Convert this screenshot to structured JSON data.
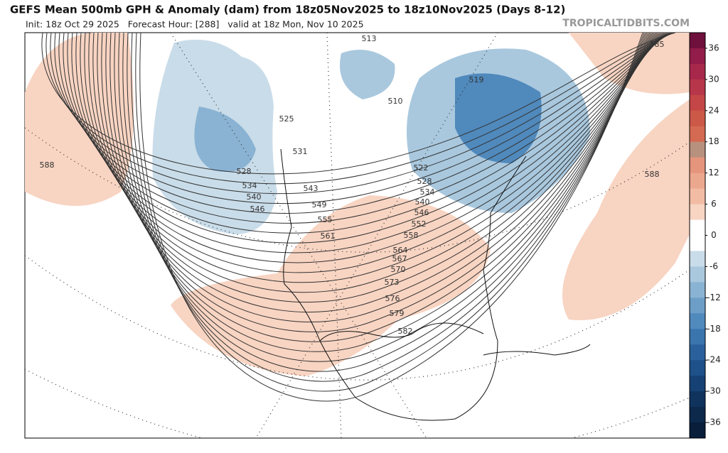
{
  "header": {
    "title": "GEFS Mean 500mb GPH & Anomaly (dam) from 18z05Nov2025 to 18z10Nov2025 (Days 8-12)",
    "info": "Init: 18z Oct 29 2025   Forecast Hour: [288]   valid at 18z Mon, Nov 10 2025",
    "watermark": "TROPICALTIDBITS.COM"
  },
  "contour_labels": [
    513,
    510,
    519,
    525,
    531,
    528,
    534,
    540,
    546,
    543,
    549,
    555,
    561,
    522,
    528,
    534,
    540,
    546,
    552,
    558,
    564,
    567,
    570,
    573,
    576,
    579,
    582,
    588,
    588,
    585
  ],
  "colorbar": {
    "lim": [
      -39,
      39
    ],
    "ticks": [
      36,
      30,
      24,
      18,
      12,
      6,
      0,
      -6,
      -12,
      -18,
      -24,
      -30,
      -36
    ],
    "colors": [
      "#6e0f3c",
      "#921c4a",
      "#a8284c",
      "#b8364a",
      "#c44646",
      "#cc5848",
      "#d46a52",
      "#b8907e",
      "#e4957c",
      "#eca88e",
      "#f2bca4",
      "#f8d4c2",
      "#ffffff",
      "#ffffff",
      "#c9dce9",
      "#a9c8de",
      "#8ab3d3",
      "#6c9ec8",
      "#5089bc",
      "#3a75ae",
      "#2a619c",
      "#1e5089",
      "#164174",
      "#10335e",
      "#0c284b",
      "#081e3a"
    ]
  }
}
